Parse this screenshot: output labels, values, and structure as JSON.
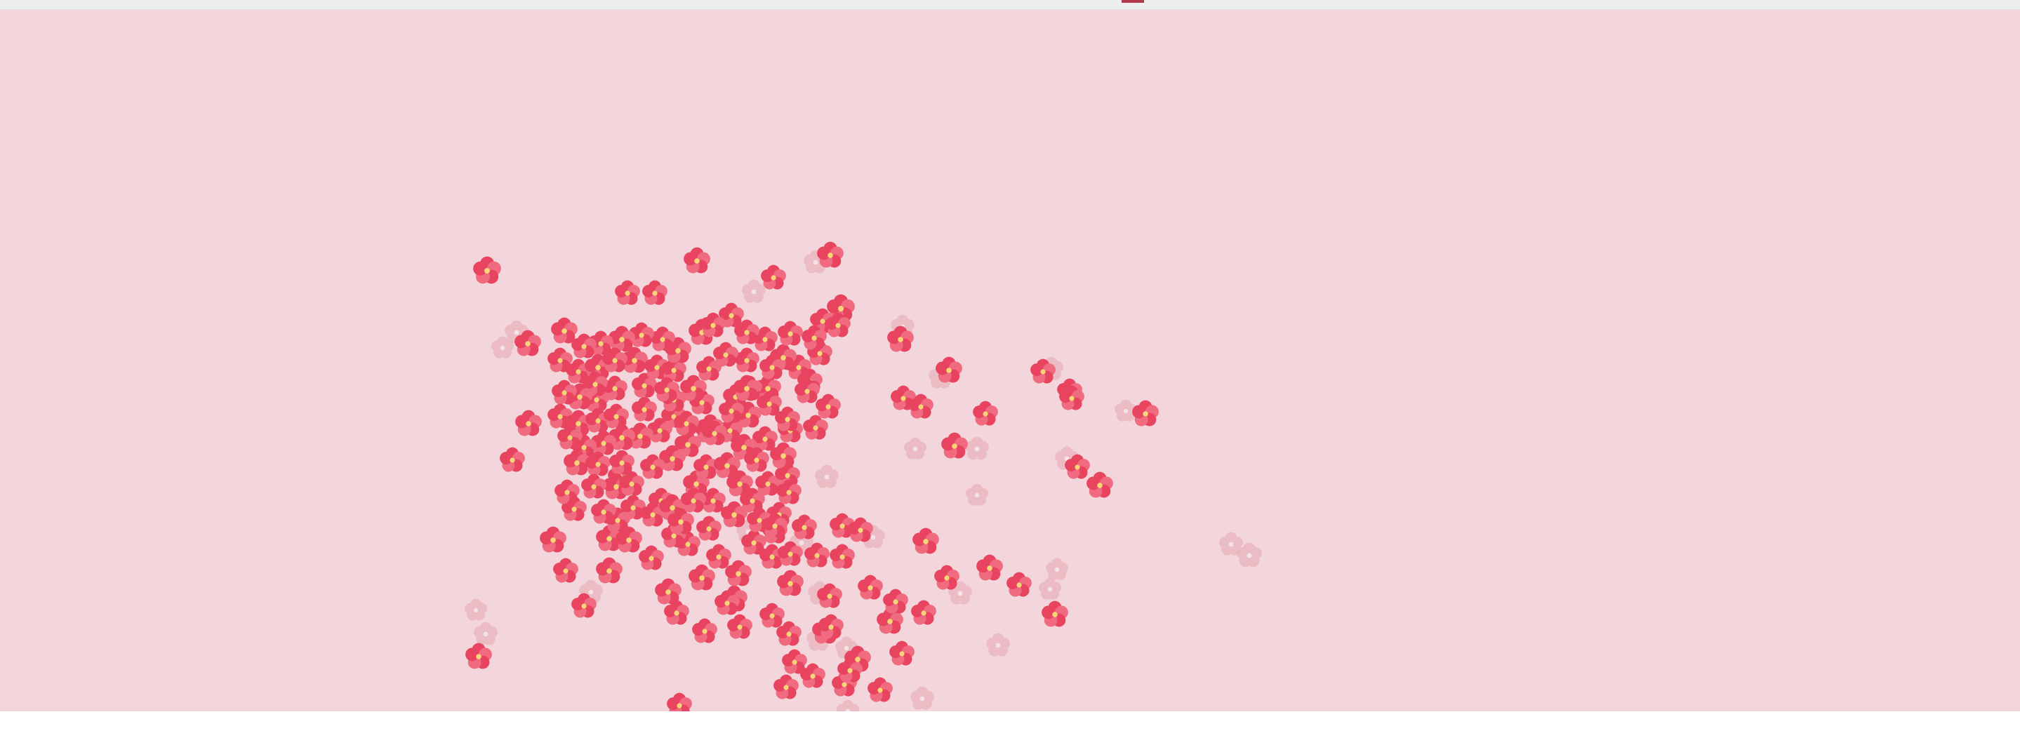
{
  "scene": {
    "background_color": "#f2d6db",
    "top_bar_color": "#eeeeee",
    "top_bar_marker_color": "#b03a4a",
    "flower_petal_color": "#e8445f",
    "flower_petal_light_color": "#f06b80",
    "flower_center_color": "#f5d77a",
    "flower_icon": "five-petal-flower-icon",
    "faded_flower_color": "#eab4be"
  }
}
